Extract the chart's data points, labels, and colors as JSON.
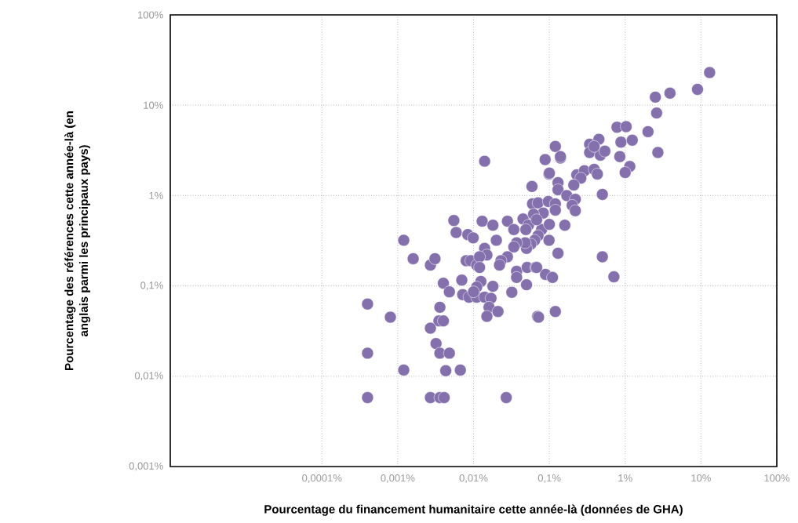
{
  "chart_data": {
    "type": "scatter",
    "xlabel": "Pourcentage du financement humanitaire cette année-là (données de GHA)",
    "ylabel": "Pourcentage des références cette année-là (en anglais parmi les principaux pays)",
    "log": "xy",
    "grid": true,
    "marker": "circle",
    "color": "#8470ad",
    "xlim": [
      1e-06,
      100
    ],
    "ylim": [
      0.001,
      100
    ],
    "xticks": [
      {
        "value": 0.0001,
        "label": "0,0001%"
      },
      {
        "value": 0.001,
        "label": "0,001%"
      },
      {
        "value": 0.01,
        "label": "0,01%"
      },
      {
        "value": 0.1,
        "label": "0,1%"
      },
      {
        "value": 1,
        "label": "1%"
      },
      {
        "value": 10,
        "label": "10%"
      },
      {
        "value": 100,
        "label": "100%"
      }
    ],
    "yticks": [
      {
        "value": 0.001,
        "label": "0,001%"
      },
      {
        "value": 0.01,
        "label": "0,01%"
      },
      {
        "value": 0.1,
        "label": "0,1%"
      },
      {
        "value": 1,
        "label": "1%"
      },
      {
        "value": 10,
        "label": "10%"
      },
      {
        "value": 100,
        "label": "100%"
      }
    ],
    "x": [
      0.0004,
      0.0004,
      0.0004,
      0.0008,
      0.0012,
      0.0012,
      0.0016,
      0.0027,
      0.0031,
      0.004,
      0.0048,
      0.0036,
      0.0035,
      0.004,
      0.0027,
      0.0032,
      0.0036,
      0.0048,
      0.0043,
      0.0067,
      0.0027,
      0.0036,
      0.0041,
      0.027,
      0.0055,
      0.0059,
      0.0084,
      0.0099,
      0.008,
      0.0092,
      0.011,
      0.007,
      0.0072,
      0.0087,
      0.011,
      0.014,
      0.017,
      0.016,
      0.015,
      0.021,
      0.032,
      0.07,
      0.12,
      0.018,
      0.0125,
      0.011,
      0.01,
      0.014,
      0.013,
      0.018,
      0.028,
      0.034,
      0.045,
      0.053,
      0.049,
      0.02,
      0.079,
      0.071,
      0.064,
      0.057,
      0.05,
      0.048,
      0.037,
      0.034,
      0.028,
      0.023,
      0.022,
      0.014,
      0.015,
      0.012,
      0.012,
      0.037,
      0.037,
      0.051,
      0.066,
      0.089,
      0.11,
      0.05,
      0.13,
      0.099,
      0.16,
      0.12,
      0.14,
      0.088,
      0.099,
      0.13,
      0.13,
      0.059,
      0.06,
      0.071,
      0.097,
      0.12,
      0.12,
      0.083,
      0.062,
      0.068,
      0.1,
      0.14,
      0.1,
      0.068,
      0.072,
      0.23,
      0.29,
      0.26,
      0.39,
      0.43,
      0.21,
      0.17,
      0.22,
      0.2,
      0.22,
      0.34,
      0.45,
      0.34,
      0.47,
      0.54,
      0.39,
      0.78,
      1.03,
      0.88,
      1.24,
      0.85,
      1.15,
      1.0,
      0.5,
      0.5,
      0.71,
      13,
      9,
      3.9,
      2.5,
      2.6,
      2.0,
      2.7
    ],
    "values": [
      0.063,
      0.018,
      0.0058,
      0.045,
      0.32,
      0.0117,
      0.2,
      0.17,
      0.2,
      0.107,
      0.086,
      0.058,
      0.041,
      0.041,
      0.034,
      0.023,
      0.018,
      0.018,
      0.0115,
      0.0117,
      0.0058,
      0.0058,
      0.0058,
      0.0058,
      0.53,
      0.39,
      0.37,
      0.34,
      0.19,
      0.19,
      0.17,
      0.116,
      0.08,
      0.075,
      0.075,
      0.075,
      0.073,
      0.058,
      0.046,
      0.052,
      0.085,
      0.046,
      0.052,
      0.099,
      0.112,
      0.097,
      0.086,
      2.4,
      0.52,
      0.47,
      0.52,
      0.42,
      0.55,
      0.47,
      0.42,
      0.32,
      0.42,
      0.36,
      0.32,
      0.29,
      0.26,
      0.3,
      0.3,
      0.27,
      0.21,
      0.19,
      0.17,
      0.26,
      0.22,
      0.21,
      0.16,
      0.145,
      0.124,
      0.16,
      0.16,
      0.134,
      0.124,
      0.103,
      0.23,
      0.32,
      0.47,
      3.5,
      2.6,
      2.5,
      1.73,
      1.39,
      1.16,
      1.26,
      0.81,
      0.83,
      0.86,
      0.81,
      0.69,
      0.64,
      0.62,
      0.54,
      0.48,
      2.7,
      1.77,
      0.16,
      0.045,
      1.7,
      1.88,
      1.56,
      1.95,
      1.73,
      1.31,
      1.0,
      0.91,
      0.78,
      0.68,
      3.7,
      4.2,
      3.0,
      2.8,
      3.1,
      3.5,
      5.7,
      5.8,
      3.9,
      4.1,
      2.7,
      2.1,
      1.8,
      1.03,
      0.21,
      0.126,
      23,
      15,
      13.6,
      12.3,
      8.2,
      5.1,
      3.0
    ]
  }
}
